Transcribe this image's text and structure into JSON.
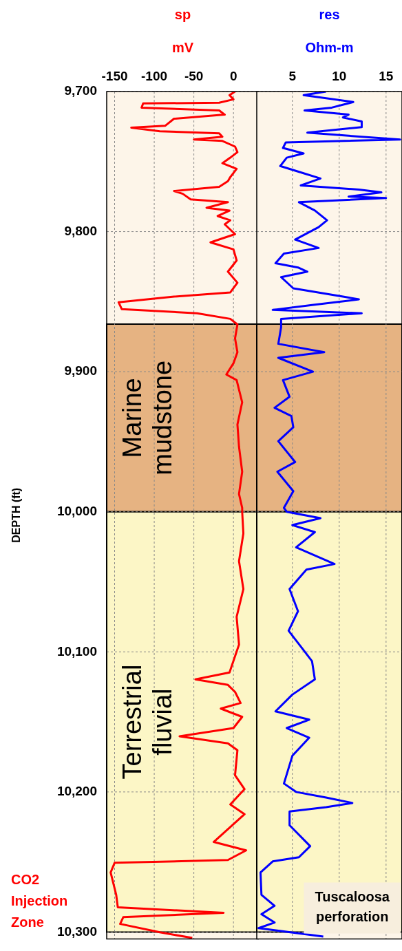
{
  "chart_data": [
    {
      "type": "line",
      "title": "sp",
      "xlabel": "mV",
      "ylabel": "DEPTH (ft)",
      "grid": true,
      "legend": false,
      "marker": "none",
      "xlim": [
        -160,
        32
      ],
      "xticks": [
        -150,
        -100,
        -50,
        0
      ],
      "ylim": [
        10305,
        9700
      ],
      "yticks": [
        {
          "value": 9700,
          "label": "9,700"
        },
        {
          "value": 9800,
          "label": "9,800"
        },
        {
          "value": 9900,
          "label": "9,900"
        },
        {
          "value": 10000,
          "label": "10,000"
        },
        {
          "value": 10100,
          "label": "10,100"
        },
        {
          "value": 10200,
          "label": "10,200"
        },
        {
          "value": 10300,
          "label": "10,300"
        }
      ],
      "series": [
        {
          "color": "#ff0000",
          "x": [
            2,
            -5,
            0,
            -18,
            -114,
            -116,
            -18,
            -11,
            -75,
            -86,
            -129,
            -93,
            -18,
            -14,
            -50,
            -14,
            2,
            5,
            -4,
            -14,
            4,
            -4,
            -7,
            -18,
            -75,
            -64,
            -54,
            -7,
            -34,
            -5,
            -20,
            -4,
            -11,
            2,
            -29,
            0,
            4,
            -7,
            5,
            -4,
            -75,
            -145,
            -141,
            -46,
            -4,
            5,
            2,
            5,
            0,
            -9,
            4,
            11,
            5,
            7,
            11,
            7,
            11,
            11,
            12.5,
            7,
            12.5,
            4,
            7,
            -5,
            -48,
            -7,
            2,
            9,
            -16,
            11,
            0,
            -68,
            -7,
            5,
            2,
            14,
            -4,
            14,
            -25,
            16,
            -7,
            -150,
            -155,
            -148,
            -146,
            -12.5,
            -139,
            -143,
            -93,
            -52
          ],
          "values": [
            9700,
            9702.6,
            9705.6,
            9708,
            9708.5,
            9711.5,
            9713.5,
            9716.5,
            9719.4,
            9724.4,
            9725.8,
            9728.4,
            9729.8,
            9732.3,
            9734.3,
            9735.3,
            9739.3,
            9743.3,
            9747.2,
            9751.2,
            9755.2,
            9761.1,
            9764,
            9768,
            9771,
            9773,
            9777,
            9779,
            9783,
            9785,
            9788.9,
            9791.9,
            9794.8,
            9801.8,
            9807.7,
            9812.7,
            9820.6,
            9828.6,
            9836.5,
            9843.4,
            9846.4,
            9850.4,
            9855.3,
            9858.3,
            9862.3,
            9866.3,
            9876.2,
            9886.1,
            9894,
            9902,
            9906,
            9921.8,
            9937.7,
            9953.5,
            9971.4,
            9987.3,
            9997.2,
            10000,
            10015.5,
            10035.3,
            10055.2,
            10075,
            10094.8,
            10114.7,
            10119.6,
            10123.6,
            10128.6,
            10136.5,
            10140.5,
            10146.4,
            10154.4,
            10160.3,
            10165.3,
            10170.2,
            10188.1,
            10198,
            10208.9,
            10215.9,
            10235.7,
            10241.7,
            10248.6,
            10250.6,
            10257.5,
            10273.4,
            10282.3,
            10286.3,
            10289.3,
            10294.2,
            10300.2,
            10304.2
          ]
        }
      ],
      "bands": [
        {
          "axis": "y",
          "from": 9866,
          "to": 10000,
          "label": "Marine mudstone",
          "color": "#e6b382"
        },
        {
          "axis": "y",
          "from": 10000,
          "to": 10300,
          "label": "Terrestrial fluvial",
          "color": "#fcf6c6"
        }
      ],
      "annotations": [
        "CO2 Injection Zone"
      ]
    },
    {
      "type": "line",
      "title": "res",
      "xlabel": "Ohm-m",
      "grid": true,
      "legend": false,
      "marker": "none",
      "tick_labels": "x",
      "xlim": [
        1.2,
        16.7
      ],
      "xticks": [
        5,
        10,
        15
      ],
      "ylim": [
        10305,
        9700
      ],
      "yticks": [
        {
          "value": 9700,
          "label": null
        },
        {
          "value": 9800,
          "label": null
        },
        {
          "value": 9900,
          "label": null
        },
        {
          "value": 10000,
          "label": null
        },
        {
          "value": 10100,
          "label": null
        },
        {
          "value": 10200,
          "label": null
        },
        {
          "value": 10300,
          "label": null
        }
      ],
      "series": [
        {
          "color": "#0000ff",
          "x": [
            8.6,
            6.2,
            11.5,
            9.2,
            6.3,
            11,
            10.4,
            12.4,
            12.4,
            6.6,
            16.5,
            4.3,
            4,
            6.2,
            4.4,
            3.7,
            5.6,
            8,
            5.9,
            12.1,
            14.5,
            11,
            15,
            5.7,
            7.4,
            8.7,
            7.8,
            5.3,
            7.8,
            4.1,
            3.2,
            5.6,
            6.6,
            3.8,
            5.1,
            10.4,
            12.1,
            7.1,
            2.9,
            12.4,
            3.8,
            3.8,
            3.5,
            8.4,
            3.5,
            7.2,
            4,
            4.7,
            3.1,
            4.9,
            5.1,
            3.5,
            5.3,
            3.4,
            5.1,
            4.1,
            4.4,
            8,
            5,
            7.4,
            5.4,
            9.5,
            6.5,
            4.7,
            5.6,
            4.6,
            6.2,
            7.1,
            7.4,
            5,
            3.2,
            6.8,
            4.4,
            6.8,
            5,
            4.1,
            5.4,
            8.6,
            11.4,
            8.6,
            4.7,
            4.7,
            6.9,
            5.7,
            2.9,
            1.6,
            1.7,
            3.1,
            1.7,
            3.1,
            1.4,
            8.3
          ],
          "values": [
            9700,
            9702.6,
            9707.5,
            9711.5,
            9713.5,
            9716.5,
            9718.5,
            9721.4,
            9725.4,
            9729.4,
            9734.3,
            9736.3,
            9740.3,
            9744.2,
            9747.2,
            9753.2,
            9757.1,
            9762.1,
            9767,
            9770,
            9772,
            9775,
            9776,
            9779,
            9784.9,
            9791.9,
            9796.8,
            9805.7,
            9811.7,
            9815.7,
            9822.6,
            9825.6,
            9828.6,
            9832.5,
            9840.5,
            9846.4,
            9848.4,
            9852.4,
            9855.9,
            9858.3,
            9862.3,
            9868.2,
            9880.1,
            9886.1,
            9890.1,
            9900,
            9906,
            9917.9,
            9925.8,
            9931.7,
            9939.7,
            9949.6,
            9964.5,
            9971.4,
            9985.3,
            9997.2,
            10000,
            10004.6,
            10009.5,
            10014.5,
            10025.4,
            10037.3,
            10041.3,
            10055.2,
            10071,
            10084.9,
            10098.8,
            10106.7,
            10119.6,
            10130.5,
            10142.5,
            10148.4,
            10154.4,
            10161.3,
            10174.2,
            10194,
            10200,
            10204,
            10207.9,
            10210.9,
            10213.9,
            10223.8,
            10238.7,
            10246.6,
            10249.6,
            10257.5,
            10273.4,
            10281.3,
            10287.3,
            10293.2,
            10297.2,
            10303.2
          ]
        }
      ],
      "bands": [
        {
          "axis": "y",
          "from": 9866,
          "to": 10000,
          "color": "#e6b382"
        },
        {
          "axis": "y",
          "from": 10000,
          "to": 10300,
          "color": "#fcf6c6"
        }
      ],
      "annotations": [
        "Tuscaloosa perforation"
      ]
    }
  ]
}
